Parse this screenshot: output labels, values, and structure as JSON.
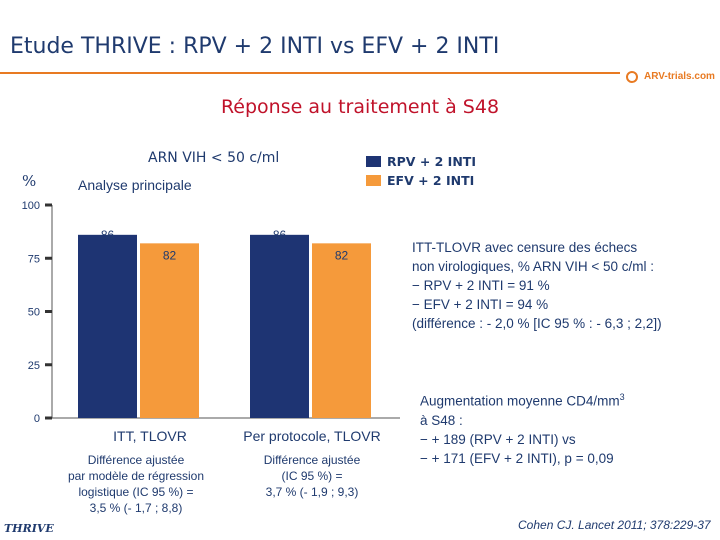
{
  "header": {
    "title": "Etude THRIVE : RPV + 2 INTI vs EFV + 2 INTI",
    "logo_text": "ARV-trials.com",
    "subtitle": "Réponse au traitement à S48"
  },
  "chart_data": {
    "type": "bar",
    "title": "ARN VIH < 50 c/ml",
    "subtitle": "Analyse principale",
    "ylabel": "%",
    "ylim": [
      0,
      100
    ],
    "yticks": [
      0,
      25,
      50,
      75,
      100
    ],
    "categories": [
      "ITT, TLOVR",
      "Per protocole, TLOVR"
    ],
    "series": [
      {
        "name": "RPV + 2 INTI",
        "color": "#1e3473",
        "values": [
          86,
          86
        ]
      },
      {
        "name": "EFV + 2 INTI",
        "color": "#f59a3b",
        "values": [
          82,
          82
        ]
      }
    ],
    "data_labels": [
      [
        "86",
        "82"
      ],
      [
        "86",
        "82"
      ]
    ],
    "category_notes": [
      [
        "Différence ajustée",
        "par modèle de régression",
        "logistique (IC 95 %) =",
        "3,5 % (- 1,7 ; 8,8)"
      ],
      [
        "Différence ajustée",
        "(IC 95 %) =",
        "3,7 % (- 1,9 ; 9,3)"
      ]
    ],
    "grid": false,
    "legend_position": "top-right"
  },
  "itt_box": [
    "ITT-TLOVR avec censure des échecs",
    "non virologiques, % ARN VIH < 50 c/ml :",
    "− RPV + 2 INTI = 91 %",
    "− EFV + 2 INTI = 94 %",
    "(différence : - 2,0 % [IC 95 % : - 6,3 ; 2,2])"
  ],
  "cd4_box": {
    "line1": "Augmentation moyenne CD4/mm",
    "line1_sup": "3",
    "line2": "à S48 :",
    "line3": "− + 189 (RPV + 2 INTI) vs",
    "line4": "− + 171 (EFV + 2 INTI), p = 0,09"
  },
  "footer": {
    "citation": "Cohen CJ. Lancet 2011; 378:229-37",
    "study_name": "THRIVE"
  },
  "colors": {
    "title": "#1f3a6e",
    "subtitle": "#c0122a",
    "accent": "#e87a22"
  }
}
